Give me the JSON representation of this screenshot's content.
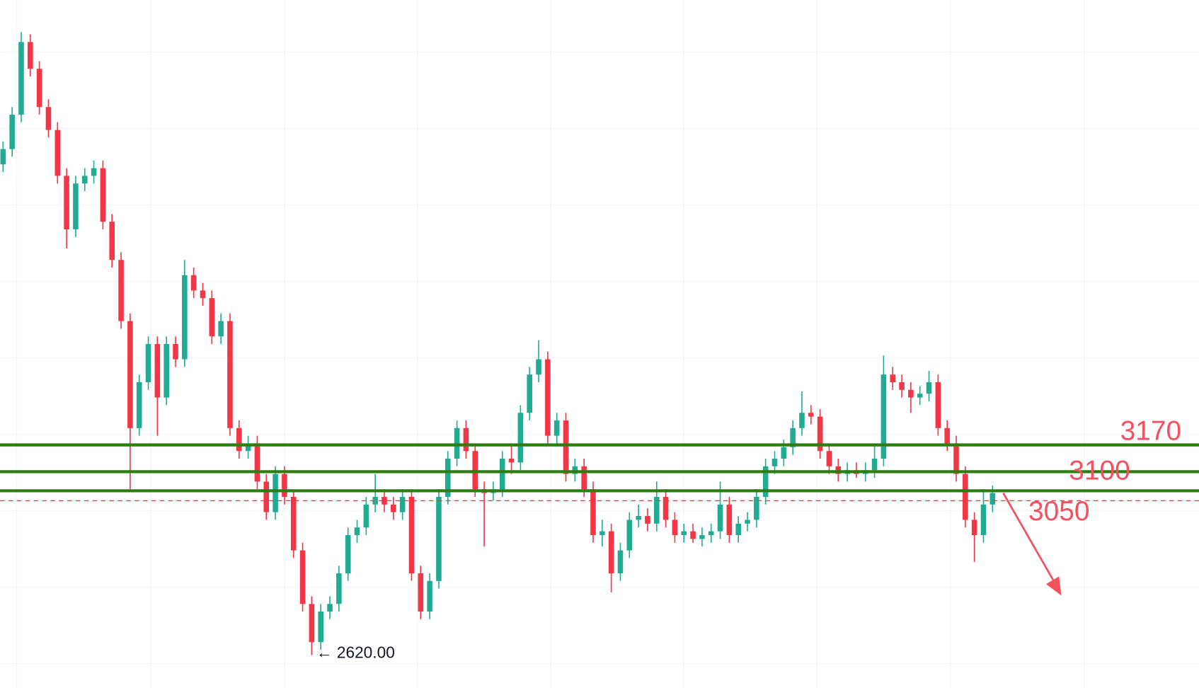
{
  "chart_data": {
    "type": "candlestick",
    "ylim": [
      2534,
      4334
    ],
    "up_color": "#22ab94",
    "down_color": "#f23645",
    "level_color": "#2e7d12",
    "label_color": "#f4515f",
    "levels": [
      3170,
      3100,
      3050
    ],
    "price_line": 3024,
    "low_label": "← 2620.00",
    "candles": [
      [
        3904,
        3964,
        3884,
        3944
      ],
      [
        3944,
        4054,
        3924,
        4034
      ],
      [
        4034,
        4250,
        4014,
        4224
      ],
      [
        4224,
        4244,
        4134,
        4154
      ],
      [
        4154,
        4174,
        4034,
        4054
      ],
      [
        4054,
        4074,
        3974,
        3994
      ],
      [
        3994,
        4014,
        3854,
        3874
      ],
      [
        3874,
        3894,
        3684,
        3734
      ],
      [
        3734,
        3874,
        3714,
        3854
      ],
      [
        3854,
        3894,
        3834,
        3874
      ],
      [
        3874,
        3914,
        3854,
        3894
      ],
      [
        3894,
        3914,
        3734,
        3754
      ],
      [
        3754,
        3774,
        3634,
        3654
      ],
      [
        3654,
        3674,
        3474,
        3494
      ],
      [
        3494,
        3514,
        3054,
        3214
      ],
      [
        3214,
        3354,
        3194,
        3334
      ],
      [
        3334,
        3454,
        3314,
        3434
      ],
      [
        3434,
        3454,
        3194,
        3294
      ],
      [
        3294,
        3454,
        3274,
        3434
      ],
      [
        3434,
        3454,
        3374,
        3394
      ],
      [
        3394,
        3654,
        3374,
        3614
      ],
      [
        3614,
        3634,
        3554,
        3574
      ],
      [
        3574,
        3594,
        3534,
        3554
      ],
      [
        3554,
        3574,
        3434,
        3454
      ],
      [
        3454,
        3514,
        3434,
        3494
      ],
      [
        3494,
        3514,
        3194,
        3214
      ],
      [
        3214,
        3234,
        3134,
        3154
      ],
      [
        3154,
        3194,
        3134,
        3174
      ],
      [
        3174,
        3194,
        3054,
        3074
      ],
      [
        3074,
        3094,
        2974,
        2994
      ],
      [
        2994,
        3114,
        2974,
        3094
      ],
      [
        3094,
        3114,
        3014,
        3034
      ],
      [
        3034,
        3054,
        2874,
        2894
      ],
      [
        2894,
        2914,
        2734,
        2754
      ],
      [
        2754,
        2774,
        2620,
        2654
      ],
      [
        2654,
        2754,
        2634,
        2734
      ],
      [
        2734,
        2774,
        2714,
        2754
      ],
      [
        2754,
        2854,
        2734,
        2834
      ],
      [
        2834,
        2954,
        2814,
        2934
      ],
      [
        2934,
        2974,
        2914,
        2954
      ],
      [
        2954,
        3034,
        2934,
        3014
      ],
      [
        3014,
        3094,
        2994,
        3034
      ],
      [
        3034,
        3054,
        2994,
        3014
      ],
      [
        3014,
        3034,
        2974,
        2994
      ],
      [
        2994,
        3054,
        2974,
        3034
      ],
      [
        3034,
        3054,
        2814,
        2834
      ],
      [
        2834,
        2854,
        2714,
        2734
      ],
      [
        2734,
        2834,
        2714,
        2814
      ],
      [
        2814,
        3054,
        2794,
        3034
      ],
      [
        3034,
        3154,
        3014,
        3134
      ],
      [
        3134,
        3234,
        3114,
        3214
      ],
      [
        3214,
        3234,
        3134,
        3154
      ],
      [
        3154,
        3174,
        3034,
        3054
      ],
      [
        3054,
        3074,
        2904,
        3044
      ],
      [
        3044,
        3074,
        3024,
        3054
      ],
      [
        3054,
        3154,
        3034,
        3134
      ],
      [
        3134,
        3174,
        3094,
        3124
      ],
      [
        3124,
        3274,
        3104,
        3254
      ],
      [
        3254,
        3374,
        3234,
        3354
      ],
      [
        3354,
        3444,
        3334,
        3394
      ],
      [
        3394,
        3414,
        3174,
        3194
      ],
      [
        3194,
        3254,
        3174,
        3234
      ],
      [
        3234,
        3254,
        3074,
        3094
      ],
      [
        3094,
        3134,
        3074,
        3114
      ],
      [
        3114,
        3134,
        3034,
        3054
      ],
      [
        3054,
        3074,
        2914,
        2934
      ],
      [
        2934,
        2974,
        2904,
        2944
      ],
      [
        2944,
        2964,
        2784,
        2834
      ],
      [
        2834,
        2914,
        2814,
        2894
      ],
      [
        2894,
        2994,
        2874,
        2974
      ],
      [
        2974,
        3014,
        2954,
        2984
      ],
      [
        2984,
        3004,
        2944,
        2964
      ],
      [
        2964,
        3074,
        2944,
        3034
      ],
      [
        3034,
        3054,
        2954,
        2974
      ],
      [
        2974,
        2994,
        2914,
        2934
      ],
      [
        2934,
        2964,
        2914,
        2944
      ],
      [
        2944,
        2964,
        2914,
        2924
      ],
      [
        2924,
        2954,
        2904,
        2934
      ],
      [
        2934,
        2964,
        2914,
        2944
      ],
      [
        2944,
        3074,
        2924,
        3014
      ],
      [
        3014,
        3034,
        2914,
        2934
      ],
      [
        2934,
        2984,
        2914,
        2964
      ],
      [
        2964,
        2994,
        2944,
        2974
      ],
      [
        2974,
        3054,
        2954,
        3034
      ],
      [
        3034,
        3134,
        3014,
        3114
      ],
      [
        3114,
        3154,
        3094,
        3134
      ],
      [
        3134,
        3184,
        3114,
        3164
      ],
      [
        3164,
        3234,
        3144,
        3214
      ],
      [
        3214,
        3310,
        3194,
        3254
      ],
      [
        3254,
        3274,
        3224,
        3244
      ],
      [
        3244,
        3264,
        3134,
        3154
      ],
      [
        3154,
        3174,
        3094,
        3114
      ],
      [
        3114,
        3134,
        3074,
        3094
      ],
      [
        3094,
        3124,
        3074,
        3104
      ],
      [
        3104,
        3124,
        3084,
        3094
      ],
      [
        3094,
        3124,
        3074,
        3104
      ],
      [
        3104,
        3174,
        3084,
        3134
      ],
      [
        3134,
        3404,
        3114,
        3354
      ],
      [
        3354,
        3374,
        3314,
        3334
      ],
      [
        3334,
        3354,
        3294,
        3314
      ],
      [
        3314,
        3334,
        3254,
        3294
      ],
      [
        3294,
        3324,
        3274,
        3304
      ],
      [
        3304,
        3364,
        3284,
        3334
      ],
      [
        3334,
        3354,
        3194,
        3214
      ],
      [
        3214,
        3234,
        3154,
        3174
      ],
      [
        3174,
        3194,
        3074,
        3094
      ],
      [
        3094,
        3114,
        2954,
        2974
      ],
      [
        2974,
        2994,
        2864,
        2934
      ],
      [
        2934,
        3054,
        2914,
        3014
      ],
      [
        3014,
        3064,
        2994,
        3044
      ]
    ]
  }
}
